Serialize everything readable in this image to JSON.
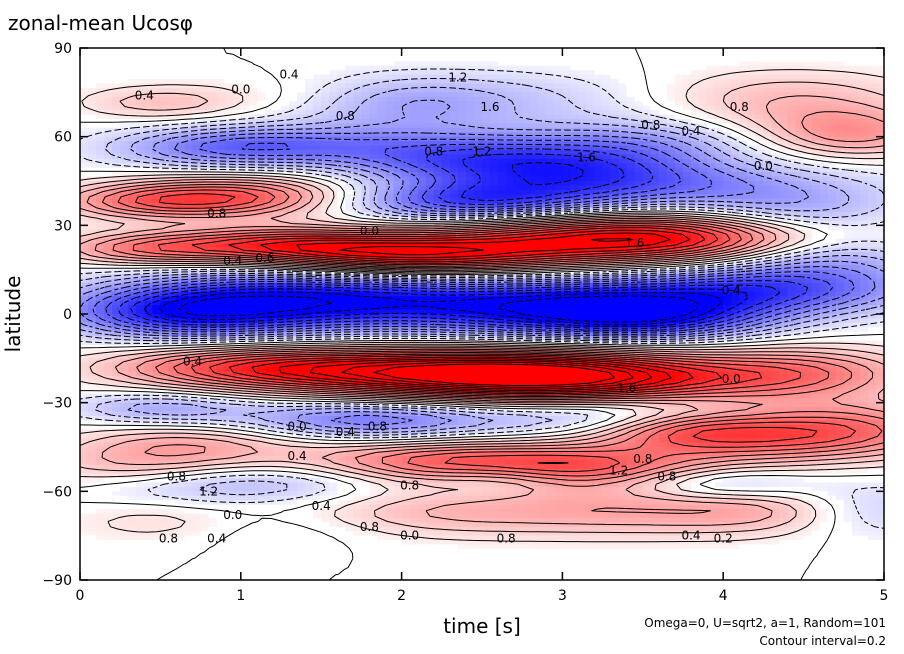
{
  "chart_data": {
    "type": "heatmap",
    "title": "zonal-mean Ucosφ",
    "xlabel": "time [s]",
    "ylabel": "latitude",
    "xlim": [
      0,
      5
    ],
    "ylim": [
      -90,
      90
    ],
    "x_ticks": [
      "0",
      "1",
      "2",
      "3",
      "4",
      "5"
    ],
    "y_ticks": [
      "90",
      "60",
      "30",
      "0",
      "−30",
      "−60",
      "−90"
    ],
    "notes": [
      "Omega=0, U=sqrt2, a=1, Random=101",
      "Contour interval=0.2"
    ],
    "contour_interval": 0.2,
    "colors": {
      "positive": "#ff0000",
      "negative": "#0000ff",
      "zero": "#ffffff"
    },
    "contour_labels": [
      {
        "text": "0.4",
        "x": 1.3,
        "y": 81
      },
      {
        "text": "0.0",
        "x": 1.0,
        "y": 76
      },
      {
        "text": "0.4",
        "x": 0.4,
        "y": 74
      },
      {
        "text": "1.2",
        "x": 2.35,
        "y": 80
      },
      {
        "text": "1.6",
        "x": 2.55,
        "y": 70
      },
      {
        "text": "0.8",
        "x": 1.65,
        "y": 67
      },
      {
        "text": "0.8",
        "x": 2.2,
        "y": 55
      },
      {
        "text": "1.2",
        "x": 2.5,
        "y": 55
      },
      {
        "text": "1.6",
        "x": 3.15,
        "y": 53
      },
      {
        "text": "0.8",
        "x": 3.55,
        "y": 64
      },
      {
        "text": "0.4",
        "x": 3.8,
        "y": 62
      },
      {
        "text": "0.8",
        "x": 4.1,
        "y": 70
      },
      {
        "text": "0.0",
        "x": 4.25,
        "y": 50
      },
      {
        "text": "0.8",
        "x": 0.85,
        "y": 34
      },
      {
        "text": "0.0",
        "x": 1.8,
        "y": 28
      },
      {
        "text": "1.6",
        "x": 3.45,
        "y": 24
      },
      {
        "text": "0.4",
        "x": 0.95,
        "y": 18
      },
      {
        "text": "0.6",
        "x": 1.15,
        "y": 19
      },
      {
        "text": "0.4",
        "x": 4.05,
        "y": 8
      },
      {
        "text": "0.4",
        "x": 0.7,
        "y": -16
      },
      {
        "text": "1.6",
        "x": 3.4,
        "y": -25
      },
      {
        "text": "0.0",
        "x": 4.05,
        "y": -22
      },
      {
        "text": "0.0",
        "x": 1.35,
        "y": -38
      },
      {
        "text": "0.4",
        "x": 1.65,
        "y": -40
      },
      {
        "text": "0.8",
        "x": 1.85,
        "y": -38
      },
      {
        "text": "0.4",
        "x": 1.35,
        "y": -48
      },
      {
        "text": "0.8",
        "x": 0.6,
        "y": -55
      },
      {
        "text": "1.2",
        "x": 0.8,
        "y": -60
      },
      {
        "text": "0.8",
        "x": 2.05,
        "y": -58
      },
      {
        "text": "1.2",
        "x": 3.35,
        "y": -53
      },
      {
        "text": "0.8",
        "x": 3.5,
        "y": -49
      },
      {
        "text": "0.8",
        "x": 3.65,
        "y": -55
      },
      {
        "text": "0.4",
        "x": 1.5,
        "y": -65
      },
      {
        "text": "0.0",
        "x": 0.95,
        "y": -68
      },
      {
        "text": "0.8",
        "x": 1.8,
        "y": -72
      },
      {
        "text": "0.0",
        "x": 2.05,
        "y": -75
      },
      {
        "text": "0.8",
        "x": 2.65,
        "y": -76
      },
      {
        "text": "0.8",
        "x": 0.55,
        "y": -76
      },
      {
        "text": "0.4",
        "x": 0.85,
        "y": -76
      },
      {
        "text": "0.4",
        "x": 3.8,
        "y": -75
      },
      {
        "text": "0.2",
        "x": 4.0,
        "y": -76
      }
    ]
  }
}
